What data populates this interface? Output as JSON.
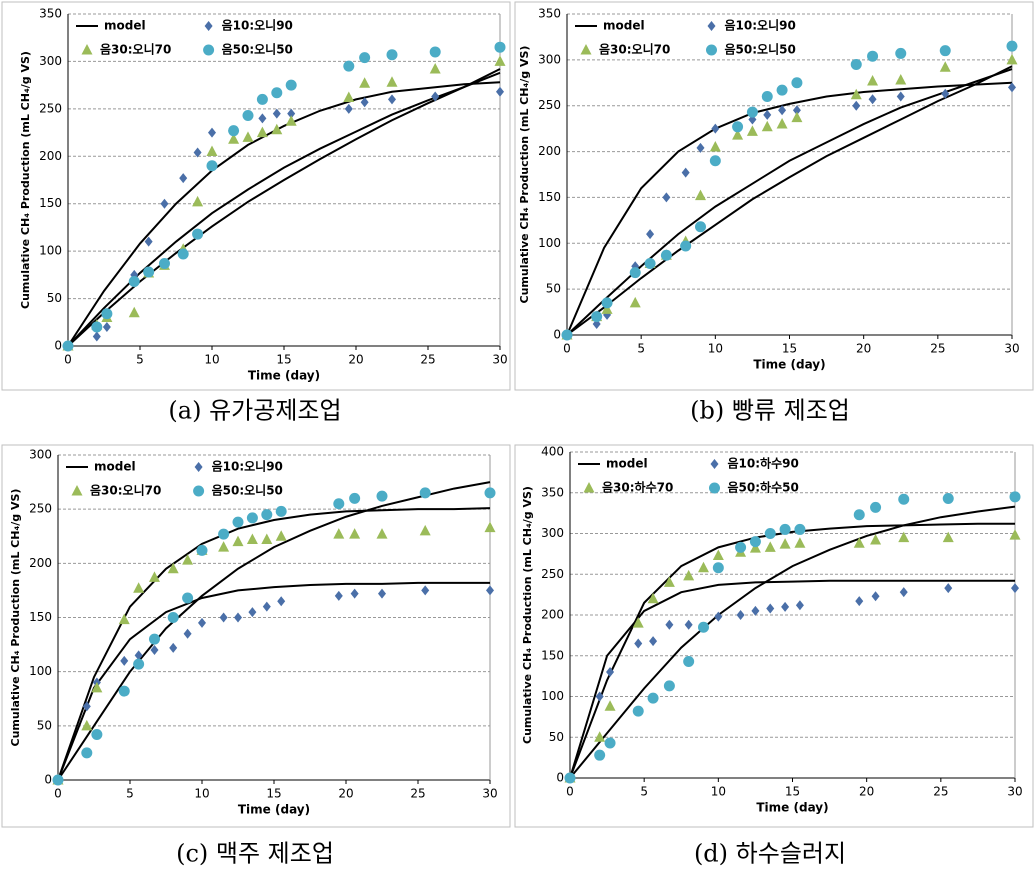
{
  "chart_data": [
    {
      "type": "scatter",
      "caption": "(a) 유가공제조업",
      "xlabel": "Time (day)",
      "ylabel": "Cumulative CH₄ Production (mL CH₄/g VS)",
      "xlim": [
        0,
        30
      ],
      "xticks": [
        0,
        5,
        10,
        15,
        20,
        25,
        30
      ],
      "ylim": [
        0,
        350
      ],
      "yticks": [
        0,
        50,
        100,
        150,
        200,
        250,
        300,
        350
      ],
      "grid": true,
      "model": {
        "name": "model",
        "color": "#000000",
        "x": [
          0,
          2.5,
          5,
          7.5,
          10,
          12.5,
          15,
          17.5,
          20,
          22.5,
          25,
          27.5,
          30
        ],
        "curves": [
          [
            0,
            58,
            108,
            150,
            185,
            212,
            232,
            248,
            260,
            268,
            272,
            276,
            278
          ],
          [
            0,
            40,
            77,
            110,
            140,
            165,
            188,
            208,
            226,
            244,
            259,
            273,
            288
          ],
          [
            0,
            35,
            68,
            98,
            126,
            152,
            175,
            197,
            218,
            238,
            256,
            273,
            292
          ]
        ]
      },
      "x": [
        0,
        2,
        2.7,
        4.6,
        5.6,
        6.7,
        8,
        9,
        10,
        11.5,
        12.5,
        13.5,
        14.5,
        15.5,
        19.5,
        20.6,
        22.5,
        25.5,
        30
      ],
      "series": [
        {
          "name": "음10:오니90",
          "color": "#4a6fa8",
          "marker": "diamond",
          "values": [
            0,
            10,
            20,
            75,
            110,
            150,
            177,
            204,
            225,
            227,
            243,
            240,
            245,
            245,
            250,
            257,
            260,
            263,
            268
          ]
        },
        {
          "name": "음30:오니70",
          "color": "#9bbb59",
          "marker": "triangle",
          "values": [
            0,
            22,
            30,
            35,
            77,
            85,
            102,
            152,
            205,
            218,
            220,
            225,
            228,
            237,
            262,
            277,
            278,
            292,
            300
          ]
        },
        {
          "name": "음50:오니50",
          "color": "#4bacc6",
          "marker": "circle",
          "values": [
            0,
            20,
            34,
            68,
            78,
            87,
            97,
            118,
            190,
            227,
            243,
            260,
            267,
            275,
            295,
            304,
            307,
            310,
            315
          ]
        }
      ]
    },
    {
      "type": "scatter",
      "caption": "(b) 빵류 제조업",
      "xlabel": "Time (day)",
      "ylabel": "Cumulative CH₄ Production (mL CH₄/g VS)",
      "xlim": [
        0,
        30
      ],
      "xticks": [
        0,
        5,
        10,
        15,
        20,
        25,
        30
      ],
      "ylim": [
        0,
        350
      ],
      "yticks": [
        0,
        50,
        100,
        150,
        200,
        250,
        300,
        350
      ],
      "grid": true,
      "model": {
        "name": "model",
        "color": "#000000",
        "x": [
          0,
          2.5,
          5,
          7.5,
          10,
          12.5,
          15,
          17.5,
          20,
          22.5,
          25,
          27.5,
          30
        ],
        "curves": [
          [
            0,
            95,
            160,
            200,
            225,
            242,
            252,
            260,
            265,
            268,
            271,
            273,
            275
          ],
          [
            0,
            38,
            75,
            110,
            140,
            165,
            190,
            210,
            230,
            248,
            262,
            276,
            290
          ],
          [
            0,
            30,
            62,
            92,
            120,
            148,
            172,
            195,
            215,
            235,
            255,
            273,
            293
          ]
        ]
      },
      "x": [
        0,
        2,
        2.7,
        4.6,
        5.6,
        6.7,
        8,
        9,
        10,
        11.5,
        12.5,
        13.5,
        14.5,
        15.5,
        19.5,
        20.6,
        22.5,
        25.5,
        30
      ],
      "series": [
        {
          "name": "음10:오니90",
          "color": "#4a6fa8",
          "marker": "diamond",
          "values": [
            0,
            12,
            22,
            75,
            110,
            150,
            177,
            204,
            225,
            227,
            235,
            240,
            245,
            245,
            250,
            257,
            260,
            263,
            270
          ]
        },
        {
          "name": "음30:오니70",
          "color": "#9bbb59",
          "marker": "triangle",
          "values": [
            0,
            20,
            28,
            35,
            78,
            87,
            102,
            152,
            205,
            218,
            222,
            227,
            230,
            237,
            262,
            277,
            278,
            292,
            300
          ]
        },
        {
          "name": "음50:오니50",
          "color": "#4bacc6",
          "marker": "circle",
          "values": [
            0,
            20,
            35,
            68,
            78,
            87,
            97,
            118,
            190,
            227,
            243,
            260,
            267,
            275,
            295,
            304,
            307,
            310,
            315
          ]
        }
      ]
    },
    {
      "type": "scatter",
      "caption": "(c) 맥주 제조업",
      "xlabel": "Time (day)",
      "ylabel": "Cumulative CH₄ Production (mL CH₄/g VS)",
      "xlim": [
        0,
        30
      ],
      "xticks": [
        0,
        5,
        10,
        15,
        20,
        25,
        30
      ],
      "ylim": [
        0,
        300
      ],
      "yticks": [
        0,
        50,
        100,
        150,
        200,
        250,
        300
      ],
      "grid": true,
      "model": {
        "name": "model",
        "color": "#000000",
        "x": [
          0,
          2.5,
          5,
          7.5,
          10,
          12.5,
          15,
          17.5,
          20,
          22.5,
          25,
          27.5,
          30
        ],
        "curves": [
          [
            0,
            85,
            130,
            155,
            168,
            175,
            178,
            180,
            181,
            181,
            182,
            182,
            182
          ],
          [
            0,
            95,
            160,
            195,
            218,
            232,
            240,
            245,
            248,
            249,
            250,
            250,
            251
          ],
          [
            0,
            50,
            100,
            140,
            170,
            195,
            215,
            230,
            243,
            253,
            261,
            269,
            275
          ]
        ]
      },
      "x": [
        0,
        2,
        2.7,
        4.6,
        5.6,
        6.7,
        8,
        9,
        10,
        11.5,
        12.5,
        13.5,
        14.5,
        15.5,
        19.5,
        20.6,
        22.5,
        25.5,
        30
      ],
      "series": [
        {
          "name": "음10:오니90",
          "color": "#4a6fa8",
          "marker": "diamond",
          "values": [
            0,
            68,
            90,
            110,
            115,
            120,
            122,
            135,
            145,
            150,
            150,
            155,
            160,
            165,
            170,
            172,
            172,
            175,
            175
          ]
        },
        {
          "name": "음30:오니70",
          "color": "#9bbb59",
          "marker": "triangle",
          "values": [
            0,
            50,
            85,
            148,
            177,
            187,
            195,
            203,
            212,
            215,
            220,
            222,
            222,
            225,
            227,
            227,
            227,
            230,
            233
          ]
        },
        {
          "name": "음50:오니50",
          "color": "#4bacc6",
          "marker": "circle",
          "values": [
            0,
            25,
            42,
            82,
            107,
            130,
            150,
            168,
            212,
            227,
            238,
            242,
            245,
            248,
            255,
            260,
            262,
            265,
            265
          ]
        }
      ]
    },
    {
      "type": "scatter",
      "caption": "(d) 하수슬러지",
      "xlabel": "Time (day)",
      "ylabel": "Cumulative CH₄ Production (mL CH₄/g VS)",
      "xlim": [
        0,
        30
      ],
      "xticks": [
        0,
        5,
        10,
        15,
        20,
        25,
        30
      ],
      "ylim": [
        0,
        400
      ],
      "yticks": [
        0,
        50,
        100,
        150,
        200,
        250,
        300,
        350,
        400
      ],
      "grid": true,
      "model": {
        "name": "model",
        "color": "#000000",
        "x": [
          0,
          2.5,
          5,
          7.5,
          10,
          12.5,
          15,
          17.5,
          20,
          22.5,
          25,
          27.5,
          30
        ],
        "curves": [
          [
            0,
            150,
            205,
            228,
            237,
            240,
            241,
            242,
            242,
            242,
            242,
            242,
            242
          ],
          [
            0,
            120,
            215,
            260,
            283,
            295,
            302,
            306,
            309,
            310,
            311,
            312,
            312
          ],
          [
            0,
            55,
            110,
            160,
            200,
            233,
            260,
            280,
            297,
            310,
            320,
            327,
            333
          ]
        ]
      },
      "x": [
        0,
        2,
        2.7,
        4.6,
        5.6,
        6.7,
        8,
        9,
        10,
        11.5,
        12.5,
        13.5,
        14.5,
        15.5,
        19.5,
        20.6,
        22.5,
        25.5,
        30
      ],
      "series": [
        {
          "name": "음10:하수90",
          "color": "#4a6fa8",
          "marker": "diamond",
          "values": [
            0,
            100,
            130,
            165,
            168,
            188,
            188,
            185,
            198,
            200,
            205,
            208,
            210,
            212,
            217,
            223,
            228,
            233,
            233
          ]
        },
        {
          "name": "음30:하수70",
          "color": "#9bbb59",
          "marker": "triangle",
          "values": [
            0,
            50,
            88,
            190,
            220,
            240,
            248,
            258,
            273,
            277,
            282,
            283,
            287,
            288,
            288,
            292,
            295,
            295,
            298
          ]
        },
        {
          "name": "음50:하수50",
          "color": "#4bacc6",
          "marker": "circle",
          "values": [
            0,
            28,
            43,
            82,
            98,
            113,
            143,
            185,
            258,
            283,
            290,
            300,
            305,
            305,
            323,
            332,
            342,
            343,
            345
          ]
        }
      ]
    }
  ]
}
